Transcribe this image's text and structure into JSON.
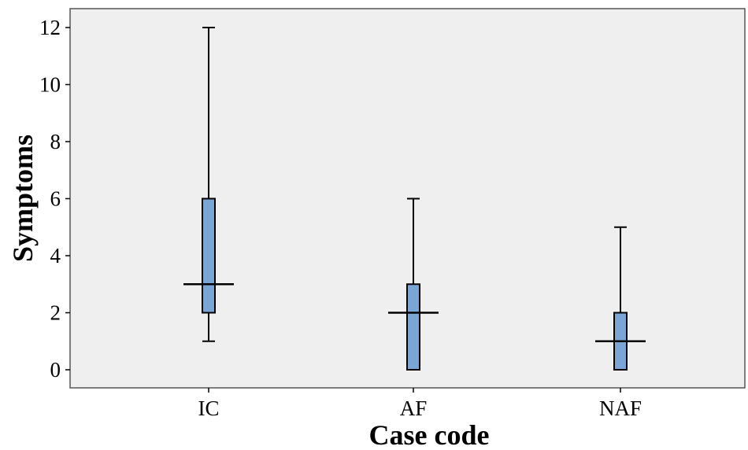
{
  "chart_data": {
    "type": "box",
    "xlabel": "Case code",
    "ylabel": "Symptoms",
    "ylim": [
      -0.6,
      12.6
    ],
    "yticks": [
      "0",
      "2",
      "4",
      "6",
      "8",
      "10",
      "12"
    ],
    "categories": [
      "IC",
      "AF",
      "NAF"
    ],
    "boxes": [
      {
        "category": "IC",
        "min": 1,
        "q1": 2,
        "median": 3,
        "q3": 6,
        "max": 12
      },
      {
        "category": "AF",
        "min": 0,
        "q1": 0,
        "median": 2,
        "q3": 3,
        "max": 6
      },
      {
        "category": "NAF",
        "min": 0,
        "q1": 0,
        "median": 1,
        "q3": 2,
        "max": 5
      }
    ],
    "grid": false,
    "colors": {
      "box_fill": "#7aa6d6",
      "plot_background": "#efefef",
      "line": "#000000"
    }
  }
}
